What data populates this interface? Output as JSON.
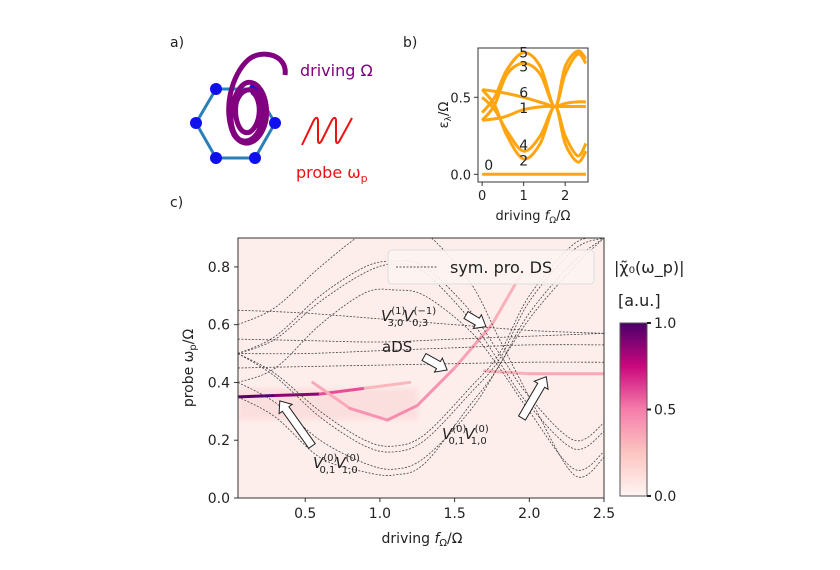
{
  "panel_a": {
    "label": "a)",
    "driving_text": "driving Ω",
    "probe_text": "probe ω",
    "probe_sub": "p",
    "colors": {
      "driving": "#800080",
      "probe": "#ee1111",
      "lattice_edge": "#2a7fb8",
      "lattice_site": "#1010ee"
    }
  },
  "chart_data": [
    {
      "id": "b",
      "panel_label": "b)",
      "type": "line",
      "title": "",
      "xlabel": "driving f_Ω/Ω",
      "ylabel": "ε_λ/Ω",
      "xlim": [
        -0.1,
        2.55
      ],
      "ylim": [
        -0.05,
        0.82
      ],
      "xticks": [
        0,
        1,
        2
      ],
      "xtick_labels": [
        "0",
        "1",
        "2"
      ],
      "yticks": [
        0.0,
        0.5
      ],
      "ytick_labels": [
        "0.0",
        "0.5"
      ],
      "color": "#ffa510",
      "series": [
        {
          "name": "0",
          "x": [
            0,
            0.5,
            1.0,
            1.5,
            2.0,
            2.5
          ],
          "y": [
            0.0,
            0.0,
            0.0,
            0.0,
            0.0,
            0.0
          ]
        },
        {
          "name": "1",
          "x": [
            0,
            0.5,
            1.0,
            1.5,
            1.75,
            2.0,
            2.3,
            2.5
          ],
          "y": [
            0.35,
            0.37,
            0.42,
            0.44,
            0.44,
            0.44,
            0.44,
            0.44
          ]
        },
        {
          "name": "2",
          "x": [
            0,
            0.3,
            0.6,
            1.0,
            1.4,
            1.75,
            2.0,
            2.3,
            2.5
          ],
          "y": [
            0.55,
            0.45,
            0.25,
            0.1,
            0.2,
            0.44,
            0.2,
            0.08,
            0.15
          ]
        },
        {
          "name": "3",
          "x": [
            0,
            0.3,
            0.6,
            1.0,
            1.4,
            1.75,
            2.0,
            2.3,
            2.5
          ],
          "y": [
            0.35,
            0.45,
            0.65,
            0.72,
            0.65,
            0.44,
            0.65,
            0.78,
            0.72
          ]
        },
        {
          "name": "4",
          "x": [
            0,
            0.3,
            0.6,
            1.0,
            1.4,
            1.75,
            2.0,
            2.3,
            2.5
          ],
          "y": [
            0.5,
            0.42,
            0.28,
            0.15,
            0.25,
            0.44,
            0.25,
            0.12,
            0.2
          ]
        },
        {
          "name": "5",
          "x": [
            0,
            0.3,
            0.6,
            1.0,
            1.4,
            1.75,
            2.0,
            2.3,
            2.5
          ],
          "y": [
            0.4,
            0.5,
            0.68,
            0.79,
            0.7,
            0.44,
            0.7,
            0.8,
            0.75
          ]
        },
        {
          "name": "6",
          "x": [
            0,
            0.5,
            1.0,
            1.5,
            1.75,
            2.0,
            2.3,
            2.5
          ],
          "y": [
            0.55,
            0.53,
            0.5,
            0.46,
            0.44,
            0.46,
            0.47,
            0.47
          ]
        }
      ],
      "annotations": [
        {
          "text": "5",
          "x": 1.0,
          "y": 0.79
        },
        {
          "text": "3",
          "x": 1.0,
          "y": 0.7
        },
        {
          "text": "6",
          "x": 1.0,
          "y": 0.53
        },
        {
          "text": "1",
          "x": 1.0,
          "y": 0.43
        },
        {
          "text": "4",
          "x": 1.0,
          "y": 0.19
        },
        {
          "text": "2",
          "x": 1.0,
          "y": 0.09
        },
        {
          "text": "0",
          "x": 0.05,
          "y": 0.06
        }
      ]
    },
    {
      "id": "c",
      "panel_label": "c)",
      "type": "heatmap",
      "xlabel": "driving f_Ω/Ω",
      "ylabel": "probe ω_p/Ω",
      "xlim": [
        0.05,
        2.5
      ],
      "ylim": [
        0.0,
        0.9
      ],
      "xticks": [
        0.5,
        1.0,
        1.5,
        2.0,
        2.5
      ],
      "xtick_labels": [
        "0.5",
        "1.0",
        "1.5",
        "2.0",
        "2.5"
      ],
      "yticks": [
        0.0,
        0.2,
        0.4,
        0.6,
        0.8
      ],
      "ytick_labels": [
        "0.0",
        "0.2",
        "0.4",
        "0.6",
        "0.8"
      ],
      "legend": {
        "label": "sym. pro. DS",
        "placement": "top-right"
      },
      "colorbar": {
        "title": "|χ̃₀(ω_p)|",
        "unit": "[a.u.]",
        "ticks": [
          0.0,
          0.5,
          1.0
        ],
        "tick_labels": [
          "0.0",
          "0.5",
          "1.0"
        ],
        "colormap": "RdPu"
      },
      "response_features": [
        {
          "name": "lower-branch",
          "x": [
            0.05,
            0.3,
            0.6,
            0.9,
            1.2
          ],
          "y": [
            0.35,
            0.355,
            0.36,
            0.38,
            0.4
          ],
          "intensity": [
            1.0,
            0.95,
            0.8,
            0.4,
            0.2
          ]
        },
        {
          "name": "dip-branch",
          "x": [
            0.55,
            0.8,
            1.05,
            1.25,
            1.5,
            1.75,
            1.95
          ],
          "y": [
            0.4,
            0.31,
            0.27,
            0.32,
            0.45,
            0.6,
            0.78
          ],
          "intensity": [
            0.3,
            0.4,
            0.45,
            0.45,
            0.4,
            0.35,
            0.3
          ]
        },
        {
          "name": "flat-branch",
          "x": [
            1.7,
            2.0,
            2.5
          ],
          "y": [
            0.44,
            0.43,
            0.43
          ],
          "intensity": [
            0.3,
            0.35,
            0.35
          ]
        }
      ],
      "dashed_series": [
        {
          "x": [
            0.05,
            0.5,
            1.0,
            1.5,
            2.0,
            2.5
          ],
          "y": [
            0.65,
            0.64,
            0.62,
            0.6,
            0.58,
            0.57
          ]
        },
        {
          "x": [
            0.05,
            0.5,
            1.0,
            1.5,
            2.0,
            2.5
          ],
          "y": [
            0.55,
            0.545,
            0.54,
            0.55,
            0.56,
            0.57
          ]
        },
        {
          "x": [
            0.05,
            0.5,
            1.0,
            1.5,
            2.0,
            2.5
          ],
          "y": [
            0.5,
            0.5,
            0.51,
            0.52,
            0.53,
            0.53
          ]
        },
        {
          "x": [
            0.05,
            0.5,
            1.0,
            1.5,
            2.0,
            2.5
          ],
          "y": [
            0.45,
            0.455,
            0.46,
            0.465,
            0.47,
            0.47
          ]
        },
        {
          "x": [
            0.05,
            0.3,
            0.6,
            0.9,
            1.1,
            1.3,
            1.6,
            1.8,
            2.0,
            2.3,
            2.5
          ],
          "y": [
            0.5,
            0.56,
            0.7,
            0.8,
            0.82,
            0.8,
            0.65,
            0.5,
            0.35,
            0.2,
            0.26
          ]
        },
        {
          "x": [
            0.05,
            0.3,
            0.6,
            0.9,
            1.1,
            1.3,
            1.6,
            1.8,
            2.0,
            2.3,
            2.5
          ],
          "y": [
            0.5,
            0.55,
            0.68,
            0.78,
            0.81,
            0.78,
            0.62,
            0.47,
            0.32,
            0.17,
            0.23
          ]
        },
        {
          "x": [
            0.05,
            0.3,
            0.6,
            0.9,
            1.1,
            1.3,
            1.6,
            1.8,
            2.0,
            2.3,
            2.5
          ],
          "y": [
            0.4,
            0.45,
            0.6,
            0.71,
            0.72,
            0.7,
            0.58,
            0.45,
            0.3,
            0.1,
            0.16
          ]
        },
        {
          "x": [
            0.05,
            0.3,
            0.6,
            0.9,
            1.1,
            1.3,
            1.6,
            1.8,
            2.0,
            2.3,
            2.5
          ],
          "y": [
            0.6,
            0.66,
            0.8,
            0.92,
            0.95,
            0.92,
            0.75,
            0.55,
            0.35,
            0.08,
            0.14
          ]
        },
        {
          "x": [
            0.05,
            0.3,
            0.6,
            0.9,
            1.1,
            1.3,
            1.6,
            1.8,
            2.0,
            2.3,
            2.5
          ],
          "y": [
            0.5,
            0.43,
            0.3,
            0.2,
            0.18,
            0.22,
            0.38,
            0.5,
            0.7,
            0.88,
            0.9
          ]
        },
        {
          "x": [
            0.05,
            0.3,
            0.6,
            0.9,
            1.1,
            1.3,
            1.6,
            1.8,
            2.0,
            2.3,
            2.5
          ],
          "y": [
            0.5,
            0.42,
            0.28,
            0.18,
            0.16,
            0.2,
            0.36,
            0.48,
            0.68,
            0.86,
            0.9
          ]
        },
        {
          "x": [
            0.05,
            0.3,
            0.6,
            0.9,
            1.1,
            1.3,
            1.6,
            1.8,
            2.0,
            2.3,
            2.5
          ],
          "y": [
            0.4,
            0.33,
            0.2,
            0.12,
            0.1,
            0.14,
            0.3,
            0.46,
            0.64,
            0.82,
            0.9
          ]
        },
        {
          "x": [
            0.05,
            0.3,
            0.6,
            0.9,
            1.1,
            1.3,
            1.6,
            1.75,
            2.0,
            2.3,
            2.5
          ],
          "y": [
            0.35,
            0.28,
            0.14,
            0.09,
            0.08,
            0.12,
            0.32,
            0.42,
            0.62,
            0.8,
            0.9
          ]
        }
      ],
      "annotations": [
        {
          "main": "V",
          "sub1": "3,0",
          "sup1": "(1)",
          "sub2": "0,3",
          "sup2": "(−1)",
          "arrow_to": [
            1.75,
            0.6
          ]
        },
        {
          "text": "aDS",
          "arrow_to": [
            1.45,
            0.45
          ]
        },
        {
          "main": "V",
          "sub1": "0,1",
          "sup1": "(0)",
          "sub2": "1,0",
          "sup2": "(0)",
          "arrow_to": [
            0.35,
            0.35
          ]
        },
        {
          "main": "V",
          "sub1": "0,1",
          "sup1": "(0)",
          "sub2": "1,0",
          "sup2": "(0)",
          "arrow_to": [
            2.1,
            0.42
          ]
        }
      ]
    }
  ]
}
